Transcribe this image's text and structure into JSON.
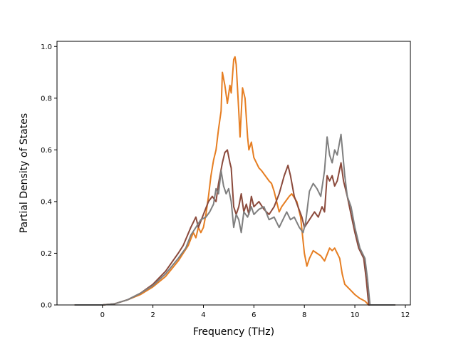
{
  "chart_data": {
    "type": "line",
    "title": "",
    "xlabel": "Frequency (THz)",
    "ylabel": "Partial Density of States",
    "xlim": [
      -1.8,
      12.2
    ],
    "ylim": [
      0.0,
      1.02
    ],
    "xticks": [
      0,
      2,
      4,
      6,
      8,
      10,
      12
    ],
    "yticks": [
      0.0,
      0.2,
      0.4,
      0.6,
      0.8,
      1.0
    ],
    "xtick_labels": [
      "0",
      "2",
      "4",
      "6",
      "8",
      "10",
      "12"
    ],
    "ytick_labels": [
      "0.0",
      "0.2",
      "0.4",
      "0.6",
      "0.8",
      "1.0"
    ],
    "grid": false,
    "series": [
      {
        "color": "#e67e22",
        "points": [
          [
            -1.1,
            0
          ],
          [
            0,
            0
          ],
          [
            0.5,
            0.005
          ],
          [
            1.0,
            0.02
          ],
          [
            1.5,
            0.04
          ],
          [
            2.0,
            0.07
          ],
          [
            2.5,
            0.11
          ],
          [
            3.0,
            0.17
          ],
          [
            3.2,
            0.2
          ],
          [
            3.4,
            0.23
          ],
          [
            3.6,
            0.28
          ],
          [
            3.7,
            0.26
          ],
          [
            3.8,
            0.3
          ],
          [
            3.9,
            0.28
          ],
          [
            4.0,
            0.3
          ],
          [
            4.1,
            0.35
          ],
          [
            4.2,
            0.42
          ],
          [
            4.3,
            0.5
          ],
          [
            4.4,
            0.56
          ],
          [
            4.5,
            0.6
          ],
          [
            4.6,
            0.68
          ],
          [
            4.7,
            0.75
          ],
          [
            4.75,
            0.9
          ],
          [
            4.85,
            0.85
          ],
          [
            4.95,
            0.78
          ],
          [
            5.05,
            0.85
          ],
          [
            5.1,
            0.82
          ],
          [
            5.2,
            0.95
          ],
          [
            5.25,
            0.96
          ],
          [
            5.3,
            0.93
          ],
          [
            5.4,
            0.75
          ],
          [
            5.45,
            0.65
          ],
          [
            5.55,
            0.84
          ],
          [
            5.65,
            0.8
          ],
          [
            5.75,
            0.65
          ],
          [
            5.8,
            0.6
          ],
          [
            5.9,
            0.63
          ],
          [
            6.0,
            0.57
          ],
          [
            6.1,
            0.55
          ],
          [
            6.2,
            0.53
          ],
          [
            6.3,
            0.52
          ],
          [
            6.45,
            0.5
          ],
          [
            6.6,
            0.48
          ],
          [
            6.7,
            0.47
          ],
          [
            6.8,
            0.44
          ],
          [
            7.0,
            0.36
          ],
          [
            7.1,
            0.38
          ],
          [
            7.25,
            0.4
          ],
          [
            7.4,
            0.42
          ],
          [
            7.5,
            0.43
          ],
          [
            7.7,
            0.4
          ],
          [
            7.85,
            0.34
          ],
          [
            8.0,
            0.2
          ],
          [
            8.1,
            0.15
          ],
          [
            8.2,
            0.18
          ],
          [
            8.35,
            0.21
          ],
          [
            8.5,
            0.2
          ],
          [
            8.65,
            0.19
          ],
          [
            8.8,
            0.17
          ],
          [
            9.0,
            0.22
          ],
          [
            9.1,
            0.21
          ],
          [
            9.2,
            0.22
          ],
          [
            9.3,
            0.2
          ],
          [
            9.4,
            0.18
          ],
          [
            9.5,
            0.12
          ],
          [
            9.6,
            0.08
          ],
          [
            9.8,
            0.06
          ],
          [
            10.0,
            0.04
          ],
          [
            10.2,
            0.025
          ],
          [
            10.4,
            0.015
          ],
          [
            10.55,
            0.0
          ],
          [
            11.6,
            0
          ]
        ]
      },
      {
        "color": "#8b4a3c",
        "points": [
          [
            -1.1,
            0
          ],
          [
            0,
            0
          ],
          [
            0.5,
            0.005
          ],
          [
            1.0,
            0.02
          ],
          [
            1.5,
            0.045
          ],
          [
            2.0,
            0.08
          ],
          [
            2.5,
            0.13
          ],
          [
            3.0,
            0.2
          ],
          [
            3.2,
            0.23
          ],
          [
            3.5,
            0.3
          ],
          [
            3.7,
            0.34
          ],
          [
            3.8,
            0.3
          ],
          [
            4.0,
            0.35
          ],
          [
            4.2,
            0.4
          ],
          [
            4.35,
            0.42
          ],
          [
            4.5,
            0.4
          ],
          [
            4.6,
            0.47
          ],
          [
            4.75,
            0.55
          ],
          [
            4.85,
            0.59
          ],
          [
            4.95,
            0.6
          ],
          [
            5.05,
            0.55
          ],
          [
            5.1,
            0.53
          ],
          [
            5.2,
            0.38
          ],
          [
            5.3,
            0.35
          ],
          [
            5.4,
            0.38
          ],
          [
            5.5,
            0.43
          ],
          [
            5.6,
            0.36
          ],
          [
            5.7,
            0.39
          ],
          [
            5.8,
            0.35
          ],
          [
            5.9,
            0.42
          ],
          [
            6.0,
            0.38
          ],
          [
            6.2,
            0.4
          ],
          [
            6.4,
            0.37
          ],
          [
            6.6,
            0.35
          ],
          [
            6.8,
            0.38
          ],
          [
            7.0,
            0.43
          ],
          [
            7.2,
            0.5
          ],
          [
            7.35,
            0.54
          ],
          [
            7.45,
            0.5
          ],
          [
            7.6,
            0.42
          ],
          [
            7.75,
            0.38
          ],
          [
            7.9,
            0.34
          ],
          [
            8.0,
            0.3
          ],
          [
            8.2,
            0.33
          ],
          [
            8.4,
            0.36
          ],
          [
            8.55,
            0.34
          ],
          [
            8.7,
            0.38
          ],
          [
            8.8,
            0.36
          ],
          [
            8.9,
            0.5
          ],
          [
            9.0,
            0.48
          ],
          [
            9.1,
            0.5
          ],
          [
            9.2,
            0.46
          ],
          [
            9.3,
            0.48
          ],
          [
            9.45,
            0.55
          ],
          [
            9.55,
            0.48
          ],
          [
            9.7,
            0.42
          ],
          [
            9.85,
            0.35
          ],
          [
            10.0,
            0.28
          ],
          [
            10.15,
            0.22
          ],
          [
            10.35,
            0.18
          ],
          [
            10.45,
            0.1
          ],
          [
            10.55,
            0.0
          ],
          [
            11.6,
            0
          ]
        ]
      },
      {
        "color": "#7f7f7f",
        "points": [
          [
            -1.1,
            0
          ],
          [
            0,
            0
          ],
          [
            0.5,
            0.005
          ],
          [
            1.0,
            0.02
          ],
          [
            1.5,
            0.045
          ],
          [
            2.0,
            0.075
          ],
          [
            2.5,
            0.12
          ],
          [
            3.0,
            0.18
          ],
          [
            3.3,
            0.22
          ],
          [
            3.5,
            0.27
          ],
          [
            3.7,
            0.3
          ],
          [
            3.9,
            0.33
          ],
          [
            4.1,
            0.34
          ],
          [
            4.25,
            0.36
          ],
          [
            4.4,
            0.39
          ],
          [
            4.5,
            0.45
          ],
          [
            4.6,
            0.43
          ],
          [
            4.7,
            0.52
          ],
          [
            4.8,
            0.46
          ],
          [
            4.9,
            0.43
          ],
          [
            5.0,
            0.45
          ],
          [
            5.1,
            0.4
          ],
          [
            5.2,
            0.3
          ],
          [
            5.3,
            0.35
          ],
          [
            5.4,
            0.33
          ],
          [
            5.5,
            0.28
          ],
          [
            5.6,
            0.36
          ],
          [
            5.75,
            0.34
          ],
          [
            5.9,
            0.38
          ],
          [
            6.0,
            0.35
          ],
          [
            6.2,
            0.37
          ],
          [
            6.4,
            0.38
          ],
          [
            6.6,
            0.33
          ],
          [
            6.8,
            0.34
          ],
          [
            7.0,
            0.3
          ],
          [
            7.1,
            0.32
          ],
          [
            7.3,
            0.36
          ],
          [
            7.45,
            0.33
          ],
          [
            7.6,
            0.34
          ],
          [
            7.8,
            0.3
          ],
          [
            7.95,
            0.28
          ],
          [
            8.05,
            0.32
          ],
          [
            8.2,
            0.44
          ],
          [
            8.35,
            0.47
          ],
          [
            8.5,
            0.45
          ],
          [
            8.65,
            0.42
          ],
          [
            8.8,
            0.52
          ],
          [
            8.9,
            0.65
          ],
          [
            9.0,
            0.58
          ],
          [
            9.1,
            0.55
          ],
          [
            9.2,
            0.6
          ],
          [
            9.3,
            0.58
          ],
          [
            9.45,
            0.66
          ],
          [
            9.6,
            0.5
          ],
          [
            9.7,
            0.42
          ],
          [
            9.85,
            0.38
          ],
          [
            10.0,
            0.3
          ],
          [
            10.2,
            0.22
          ],
          [
            10.4,
            0.18
          ],
          [
            10.5,
            0.1
          ],
          [
            10.6,
            0.0
          ],
          [
            11.6,
            0
          ]
        ]
      }
    ]
  }
}
